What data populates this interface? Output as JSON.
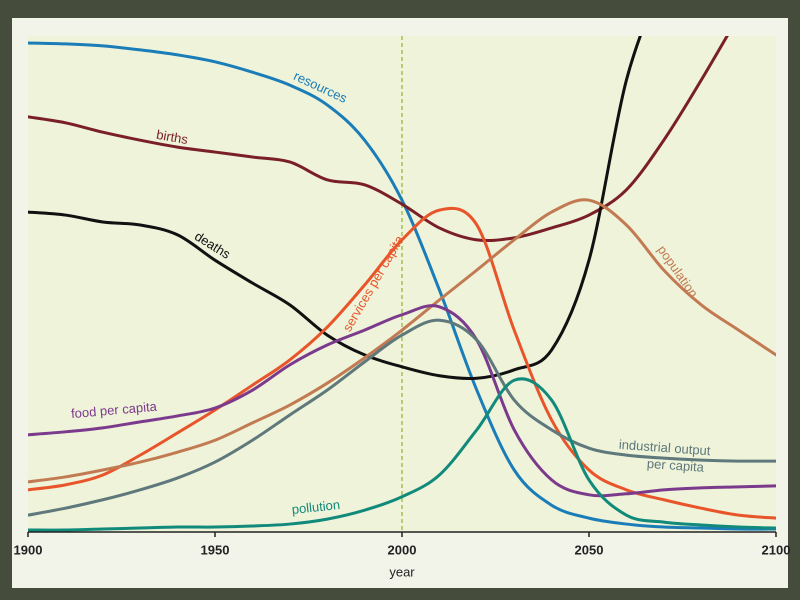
{
  "chart_data": {
    "type": "line",
    "xlabel": "year",
    "x": [
      1900,
      1910,
      1920,
      1930,
      1940,
      1950,
      1960,
      1970,
      1980,
      1990,
      2000,
      2010,
      2020,
      2030,
      2040,
      2050,
      2060,
      2070,
      2080,
      2090,
      2100
    ],
    "xlim": [
      1900,
      2100
    ],
    "xticks": [
      1900,
      1950,
      2000,
      2050,
      2100
    ],
    "ylim": [
      0,
      100
    ],
    "reference_line": {
      "x": 2000,
      "color": "#a8c45a"
    },
    "series": [
      {
        "name": "resources",
        "color": "#1b7db8",
        "values": [
          98.6,
          98.4,
          98.0,
          97.2,
          96.2,
          94.8,
          92.7,
          90.1,
          86.1,
          79.0,
          66.9,
          48.8,
          28.6,
          12.5,
          5.4,
          2.8,
          1.6,
          1.0,
          0.8,
          0.6,
          0.6
        ]
      },
      {
        "name": "births",
        "color": "#7a1f27",
        "values": [
          83.7,
          82.5,
          80.6,
          79.0,
          77.6,
          76.6,
          75.6,
          74.6,
          71.0,
          70.0,
          66.1,
          61.3,
          58.9,
          59.3,
          61.3,
          63.9,
          69.0,
          79.0,
          91.1,
          104.0,
          null
        ]
      },
      {
        "name": "deaths",
        "color": "#111111",
        "values": [
          64.5,
          63.9,
          62.5,
          61.9,
          59.9,
          54.8,
          50.2,
          45.8,
          39.7,
          35.7,
          33.3,
          31.5,
          31.0,
          32.7,
          36.7,
          54.8,
          91.1,
          112.0,
          null,
          null,
          null
        ]
      },
      {
        "name": "services per capita",
        "color": "#e9552b",
        "values": [
          8.5,
          9.5,
          11.5,
          15.5,
          20.0,
          24.6,
          29.6,
          34.7,
          41.3,
          49.8,
          58.9,
          64.9,
          61.9,
          40.7,
          22.6,
          12.5,
          8.5,
          6.5,
          4.8,
          3.4,
          2.8
        ]
      },
      {
        "name": "population",
        "color": "#c27a52",
        "values": [
          10.1,
          11.1,
          12.5,
          14.1,
          16.1,
          18.5,
          22.0,
          25.6,
          30.0,
          35.1,
          40.7,
          46.8,
          52.8,
          58.9,
          64.5,
          66.9,
          61.9,
          52.8,
          45.8,
          40.7,
          35.7
        ]
      },
      {
        "name": "food per capita",
        "color": "#7b3a8c",
        "values": [
          19.6,
          20.2,
          21.0,
          22.2,
          23.4,
          25.0,
          28.6,
          33.7,
          37.7,
          40.7,
          43.8,
          45.4,
          38.7,
          20.6,
          10.5,
          7.5,
          7.7,
          8.5,
          8.9,
          9.1,
          9.3
        ]
      },
      {
        "name": "industrial output per capita",
        "color": "#5e787b",
        "values": [
          3.4,
          4.8,
          6.5,
          8.5,
          10.9,
          14.1,
          18.5,
          23.6,
          28.6,
          34.3,
          39.7,
          42.7,
          38.7,
          26.6,
          20.6,
          16.9,
          15.5,
          14.9,
          14.5,
          14.3,
          14.3
        ]
      },
      {
        "name": "pollution",
        "color": "#128a7b",
        "values": [
          0.4,
          0.4,
          0.6,
          0.8,
          1.0,
          1.0,
          1.2,
          1.6,
          2.6,
          4.4,
          7.1,
          11.5,
          20.6,
          30.6,
          26.6,
          10.5,
          3.4,
          2.0,
          1.4,
          1.0,
          0.8
        ]
      }
    ]
  }
}
